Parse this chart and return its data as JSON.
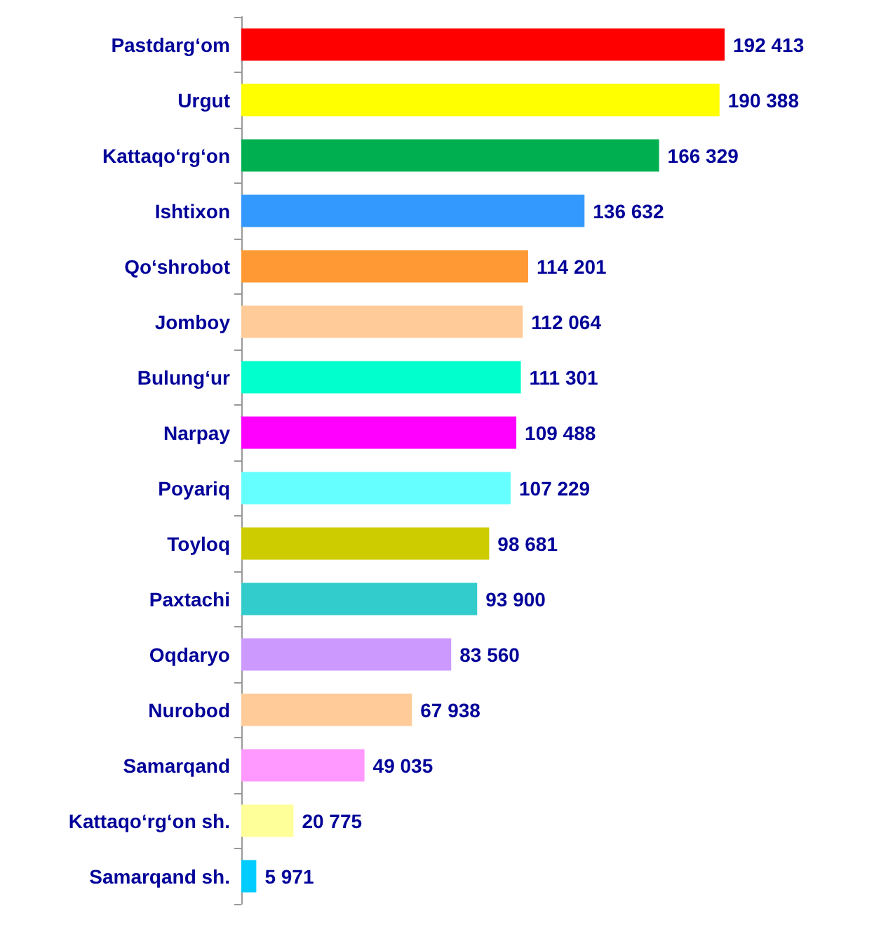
{
  "chart_data": {
    "type": "bar",
    "orientation": "horizontal",
    "categories": [
      "Pastdarg‘om",
      "Urgut",
      "Kattaqo‘rg‘on",
      "Ishtixon",
      "Qo‘shrobot",
      "Jomboy",
      "Bulung‘ur",
      "Narpay",
      "Poyariq",
      "Toyloq",
      "Paxtachi",
      "Oqdaryo",
      "Nurobod",
      "Samarqand",
      "Kattaqo‘rg‘on sh.",
      "Samarqand sh."
    ],
    "values": [
      192413,
      190388,
      166329,
      136632,
      114201,
      112064,
      111301,
      109488,
      107229,
      98681,
      93900,
      83560,
      67938,
      49035,
      20775,
      5971
    ],
    "value_labels": [
      "192 413",
      "190 388",
      "166 329",
      "136 632",
      "114 201",
      "112 064",
      "111 301",
      "109 488",
      "107 229",
      "98 681",
      "93 900",
      "83 560",
      "67 938",
      "49 035",
      "20 775",
      "5 971"
    ],
    "colors": [
      "#ff0000",
      "#ffff00",
      "#00b050",
      "#3399ff",
      "#ff9933",
      "#ffcc99",
      "#00ffcc",
      "#ff00ff",
      "#66ffff",
      "#cccc00",
      "#33cccc",
      "#cc99ff",
      "#ffcc99",
      "#ff99ff",
      "#ffff99",
      "#00ccff"
    ]
  }
}
